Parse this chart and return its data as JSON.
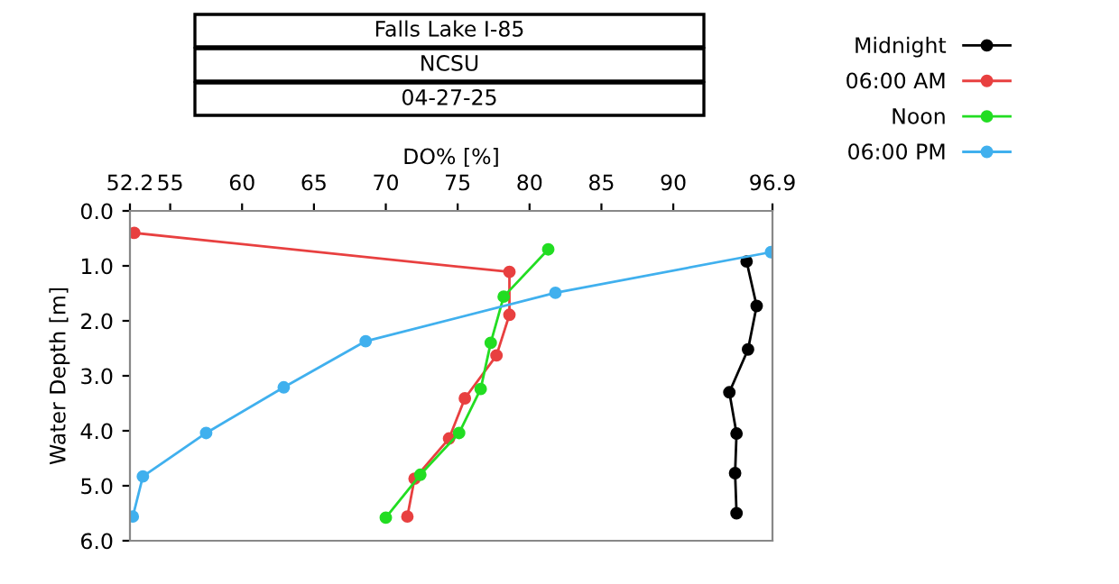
{
  "chart_data": {
    "type": "line",
    "title": "Falls Lake I-85",
    "subtitle": "NCSU",
    "annotations": [
      "04-27-25"
    ],
    "xlabel": "DO% [%]",
    "ylabel": "Water Depth [m]",
    "xlim": [
      52.2,
      96.9
    ],
    "xticks": [
      52.2,
      55,
      60,
      65,
      70,
      75,
      80,
      85,
      90,
      96.9
    ],
    "ylim": [
      6.0,
      0.0
    ],
    "yticks": [
      {
        "value": 0,
        "label": "0.0"
      },
      {
        "value": 1,
        "label": "1.0"
      },
      {
        "value": 2,
        "label": "2.0"
      },
      {
        "value": 3,
        "label": "3.0"
      },
      {
        "value": 4,
        "label": "4.0"
      },
      {
        "value": 5,
        "label": "5.0"
      },
      {
        "value": 6,
        "label": "6.0"
      }
    ],
    "marker": "circle",
    "line_style": "solid",
    "grid": false,
    "legend": "top right",
    "series": [
      {
        "name": "Midnight",
        "color": "#000000",
        "x": [
          95.1,
          95.8,
          95.2,
          93.9,
          94.4,
          94.3,
          94.4
        ],
        "values": [
          0.92,
          1.73,
          2.52,
          3.3,
          4.05,
          4.77,
          5.5
        ]
      },
      {
        "name": "06:00 AM",
        "color": "#e84040",
        "x": [
          52.5,
          78.6,
          78.6,
          77.7,
          75.5,
          74.4,
          72.0,
          71.5
        ],
        "values": [
          0.4,
          1.11,
          1.89,
          2.63,
          3.41,
          4.14,
          4.87,
          5.56
        ]
      },
      {
        "name": "Noon",
        "color": "#22dd22",
        "x": [
          81.3,
          78.2,
          77.3,
          76.6,
          75.1,
          72.4,
          70.0
        ],
        "values": [
          0.7,
          1.56,
          2.4,
          3.24,
          4.04,
          4.8,
          5.58
        ]
      },
      {
        "name": "06:00 PM",
        "color": "#40b0ee",
        "x": [
          96.8,
          81.8,
          68.6,
          62.9,
          57.5,
          53.1,
          52.4
        ],
        "values": [
          0.75,
          1.49,
          2.37,
          3.21,
          4.04,
          4.83,
          5.56
        ]
      }
    ]
  }
}
